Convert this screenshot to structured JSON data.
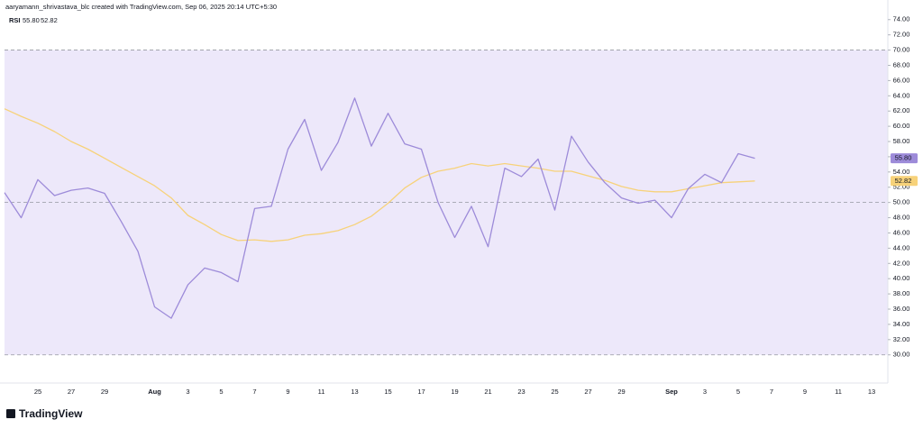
{
  "chart_data": {
    "type": "line",
    "caption": "aaryamann_shrivastava_blc created with TradingView.com, Sep 06, 2025 20:14 UTC+5:30",
    "title": "RSI",
    "brand": "TradingView",
    "categories": [
      null,
      null,
      "25",
      null,
      "27",
      null,
      "29",
      null,
      null,
      "Aug",
      null,
      "3",
      null,
      "5",
      null,
      "7",
      null,
      "9",
      null,
      "11",
      null,
      "13",
      null,
      "15",
      null,
      "17",
      null,
      "19",
      null,
      "21",
      null,
      "23",
      null,
      "25",
      null,
      "27",
      null,
      "29",
      null,
      null,
      "Sep",
      null,
      "3",
      null,
      "5",
      null,
      "7",
      null,
      "9",
      null,
      "11",
      null,
      "13",
      null
    ],
    "month_labels": [
      "Aug",
      "Sep"
    ],
    "series": [
      {
        "color": "#9d8bd9",
        "values": [
          51.3,
          48.0,
          53.0,
          50.9,
          51.6,
          51.9,
          51.2,
          47.5,
          43.6,
          36.3,
          34.8,
          39.2,
          41.4,
          40.8,
          39.6,
          49.2,
          49.5,
          57.0,
          60.9,
          54.2,
          57.9,
          63.7,
          57.4,
          61.7,
          57.7,
          57.0,
          50.0,
          45.4,
          49.5,
          44.2,
          54.5,
          53.4,
          55.7,
          49.0,
          58.7,
          55.3,
          52.6,
          50.6,
          49.9,
          50.3,
          48.0,
          51.8,
          53.7,
          52.6,
          56.4,
          55.8,
          null,
          null,
          null,
          null,
          null,
          null,
          null,
          null
        ],
        "value_labels": [
          null,
          null,
          null,
          null,
          null,
          null,
          null,
          null,
          null,
          null,
          null,
          null,
          null,
          null,
          null,
          null,
          null,
          null,
          null,
          null,
          null,
          null,
          null,
          null,
          null,
          null,
          null,
          null,
          null,
          null,
          null,
          null,
          null,
          null,
          null,
          null,
          null,
          null,
          null,
          null,
          null,
          null,
          null,
          null,
          null,
          "55.80",
          null,
          null,
          null,
          null,
          null,
          null,
          null,
          null
        ]
      },
      {
        "color": "#f7d27a",
        "values": [
          62.3,
          61.3,
          60.4,
          59.3,
          58.0,
          57.0,
          55.8,
          54.6,
          53.4,
          52.2,
          50.6,
          48.3,
          47.1,
          45.8,
          45.0,
          45.1,
          44.9,
          45.1,
          45.7,
          45.9,
          46.3,
          47.1,
          48.2,
          49.9,
          51.9,
          53.3,
          54.1,
          54.5,
          55.1,
          54.8,
          55.1,
          54.8,
          54.5,
          54.1,
          54.1,
          53.5,
          52.9,
          52.1,
          51.6,
          51.4,
          51.4,
          51.8,
          52.2,
          52.6,
          52.7,
          52.82,
          null,
          null,
          null,
          null,
          null,
          null,
          null,
          null
        ],
        "value_labels": [
          null,
          null,
          null,
          null,
          null,
          null,
          null,
          null,
          null,
          null,
          null,
          null,
          null,
          null,
          null,
          null,
          null,
          null,
          null,
          null,
          null,
          null,
          null,
          null,
          null,
          null,
          null,
          null,
          null,
          null,
          null,
          null,
          null,
          null,
          null,
          null,
          null,
          null,
          null,
          null,
          null,
          null,
          null,
          null,
          null,
          "52.82",
          null,
          null,
          null,
          null,
          null,
          null,
          null,
          null
        ]
      }
    ],
    "ylim": [
      26.3,
      74.8
    ],
    "yticks": [
      {
        "value": 30,
        "label": "30.00"
      },
      {
        "value": 32,
        "label": "32.00"
      },
      {
        "value": 34,
        "label": "34.00"
      },
      {
        "value": 36,
        "label": "36.00"
      },
      {
        "value": 38,
        "label": "38.00"
      },
      {
        "value": 40,
        "label": "40.00"
      },
      {
        "value": 42,
        "label": "42.00"
      },
      {
        "value": 44,
        "label": "44.00"
      },
      {
        "value": 46,
        "label": "46.00"
      },
      {
        "value": 48,
        "label": "48.00"
      },
      {
        "value": 50,
        "label": "50.00"
      },
      {
        "value": 52,
        "label": "52.00"
      },
      {
        "value": 54,
        "label": "54.00"
      },
      {
        "value": 56,
        "label": "56.00"
      },
      {
        "value": 58,
        "label": "58.00"
      },
      {
        "value": 60,
        "label": "60.00"
      },
      {
        "value": 62,
        "label": "62.00"
      },
      {
        "value": 64,
        "label": "64.00"
      },
      {
        "value": 66,
        "label": "66.00"
      },
      {
        "value": 68,
        "label": "68.00"
      },
      {
        "value": 70,
        "label": "70.00"
      },
      {
        "value": 72,
        "label": "72.00"
      },
      {
        "value": 74,
        "label": "74.00"
      }
    ],
    "overbought": 70,
    "middle": 50,
    "oversold": 30,
    "band_color": "#ede8fa"
  }
}
